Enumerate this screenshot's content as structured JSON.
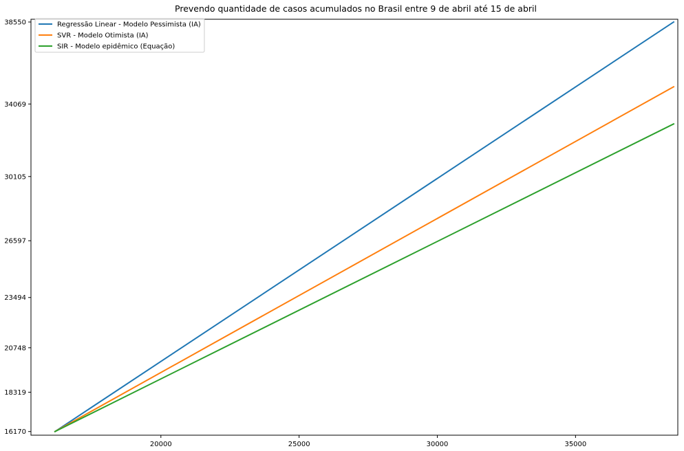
{
  "chart_data": {
    "type": "line",
    "title": "Prevendo quantidade de casos acumulados no Brasil entre 9 de abril até 15 de abril",
    "xlabel": "",
    "ylabel": "",
    "xlim": [
      15300,
      38700
    ],
    "ylim": [
      15970,
      38700
    ],
    "x_ticks": [
      20000,
      25000,
      30000,
      35000
    ],
    "x_tick_labels": [
      "20000",
      "25000",
      "30000",
      "35000"
    ],
    "y_ticks": [
      16170,
      18319,
      20748,
      23494,
      26597,
      30105,
      34069,
      38550
    ],
    "y_tick_labels": [
      "16170",
      "18319",
      "20748",
      "23494",
      "26597",
      "30105",
      "34069",
      "38550"
    ],
    "grid": false,
    "legend_position": "upper-left",
    "series": [
      {
        "name": "Regressão Linear - Modelo Pessimista (IA)",
        "color": "#1f77b4",
        "x": [
          16170,
          38550
        ],
        "y": [
          16170,
          38550
        ]
      },
      {
        "name": "SVR - Modelo Otimista (IA)",
        "color": "#ff7f0e",
        "x": [
          16170,
          38550
        ],
        "y": [
          16170,
          35010
        ]
      },
      {
        "name": "SIR - Modelo epidêmico (Equação)",
        "color": "#2ca02c",
        "x": [
          16170,
          38550
        ],
        "y": [
          16170,
          32980
        ]
      }
    ]
  }
}
